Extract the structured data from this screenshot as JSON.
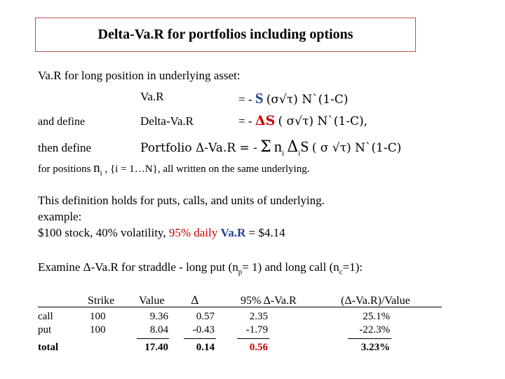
{
  "title": "Delta-Va.R for portfolios including options",
  "intro": "Va.R for long position in underlying asset:",
  "formulas": {
    "var_label": "Va.R",
    "var_rhs_prefix": "=  -",
    "var_S": "S",
    "var_rhs_suffix": "(σ√τ) N`(1-C)",
    "define_left": "and define",
    "delta_label": "Delta-Va.R",
    "delta_rhs_prefix": "=  -",
    "delta_dS": "ΔS",
    "delta_rhs_suffix": "( σ√τ) N`(1-C),",
    "then_left": "then define",
    "portfolio_label": "Portfolio Δ-Va.R =  -",
    "portfolio_sigma": "Σ",
    "portfolio_ni": "n",
    "portfolio_i1": "i",
    "portfolio_delta": "Δ",
    "portfolio_i2": "i",
    "portfolio_S": "S",
    "portfolio_suffix": "( σ √τ) N`(1-C)"
  },
  "positions_line": {
    "prefix": "for positions",
    "n": "n",
    "i": "i",
    "suffix": ", {i = 1…N}, all written on the same underlying."
  },
  "definition": {
    "line1": "This definition holds for puts, calls, and units of underlying.",
    "line2": "example:",
    "line3_a": "$100 stock, 40% volatility,",
    "line3_red": "95% daily",
    "line3_blue": "Va.R",
    "line3_b": "= $4.14"
  },
  "straddle": {
    "text_a": "Examine Δ-Va.R for straddle - long put (n",
    "sub_p": "p",
    "text_b": "= 1) and long call (n",
    "sub_c": "c",
    "text_c": "=1):"
  },
  "table": {
    "headers": {
      "strike": "Strike",
      "value": "Value",
      "delta": "Δ",
      "var": "95% Δ-Va.R",
      "ratio": "(Δ-Va.R)/Value"
    },
    "rows": [
      {
        "label": "call",
        "strike": "100",
        "value": "9.36",
        "delta": "0.57",
        "var": "2.35",
        "ratio": "25.1%"
      },
      {
        "label": "put",
        "strike": "100",
        "value": "8.04",
        "delta": "-0.43",
        "var": "-1.79",
        "ratio": "-22.3%"
      },
      {
        "label": "total",
        "strike": "",
        "value": "17.40",
        "delta": "0.14",
        "var": "0.56",
        "ratio": "3.23%"
      }
    ]
  },
  "colors": {
    "title_border": "#c0504d",
    "accent_red": "#cc0000",
    "accent_blue": "#1f3f99"
  }
}
